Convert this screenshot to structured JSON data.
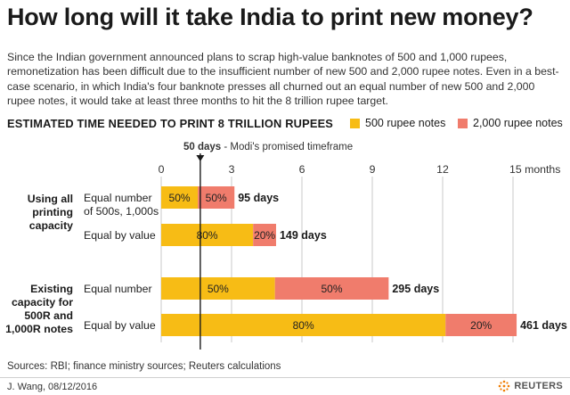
{
  "header": {
    "title": "How long will it take India to print new money?",
    "intro": "Since the Indian government announced plans to scrap high-value banknotes of 500 and 1,000 rupees, remonetization has been difficult due to the insufficient number of new 500 and 2,000 rupee notes. Even in a best-case scenario, in which India's four banknote presses all churned out an equal number of new 500 and 2,000 rupee notes, it would take at least three months to hit the 8 trillion rupee target."
  },
  "colors": {
    "note500": "#f7bc15",
    "note2000": "#f07c6c",
    "marker": "#1a1a1a",
    "grid": "#c8c8c8"
  },
  "chart_data": {
    "type": "bar",
    "orientation": "horizontal",
    "stacked": true,
    "title": "ESTIMATED TIME NEEDED TO PRINT 8 TRILLION RUPEES",
    "legend": [
      {
        "name": "500 rupee notes",
        "color": "#f7bc15"
      },
      {
        "name": "2,000 rupee notes",
        "color": "#f07c6c"
      }
    ],
    "legend_position": "top-right",
    "x_axis": {
      "min": 0,
      "max": 15,
      "ticks": [
        0,
        3,
        6,
        9,
        12,
        15
      ],
      "tick_labels": [
        "0",
        "3",
        "6",
        "9",
        "12",
        "15 months"
      ]
    },
    "grid": true,
    "reference_line": {
      "value": 1.6667,
      "label_bold": "50 days",
      "label_rest": " - Modi's promised timeframe"
    },
    "groups": [
      {
        "label": "Using all printing capacity",
        "bars": [
          {
            "label": "Equal number of 500s, 1,000s",
            "days": 95,
            "total_label": "95 days",
            "segments": [
              {
                "series": "500 rupee notes",
                "share": 50,
                "label": "50%"
              },
              {
                "series": "2,000 rupee notes",
                "share": 50,
                "label": "50%"
              }
            ]
          },
          {
            "label": "Equal by value",
            "days": 149,
            "total_label": "149 days",
            "segments": [
              {
                "series": "500 rupee notes",
                "share": 80,
                "label": "80%"
              },
              {
                "series": "2,000 rupee notes",
                "share": 20,
                "label": "20%"
              }
            ]
          }
        ]
      },
      {
        "label": "Existing capacity for 500R and 1,000R notes",
        "bars": [
          {
            "label": "Equal number",
            "days": 295,
            "total_label": "295 days",
            "segments": [
              {
                "series": "500 rupee notes",
                "share": 50,
                "label": "50%"
              },
              {
                "series": "2,000 rupee notes",
                "share": 50,
                "label": "50%"
              }
            ]
          },
          {
            "label": "Equal by value",
            "days": 461,
            "total_label": "461 days",
            "segments": [
              {
                "series": "500 rupee notes",
                "share": 80,
                "label": "80%"
              },
              {
                "series": "2,000 rupee notes",
                "share": 20,
                "label": "20%"
              }
            ]
          }
        ]
      }
    ]
  },
  "labels": {
    "group1_lines": [
      "Using all",
      "printing",
      "capacity"
    ],
    "group2_lines": [
      "Existing",
      "capacity for",
      "500R and",
      "1,000R notes"
    ],
    "bar1_lines": [
      "Equal number",
      "of 500s, 1,000s"
    ],
    "bar2": "Equal by value",
    "bar3": "Equal number",
    "bar4": "Equal by value"
  },
  "footer": {
    "sources": "Sources: RBI; finance ministry sources; Reuters calculations",
    "credit": "J. Wang,  08/12/2016",
    "brand": "REUTERS"
  }
}
